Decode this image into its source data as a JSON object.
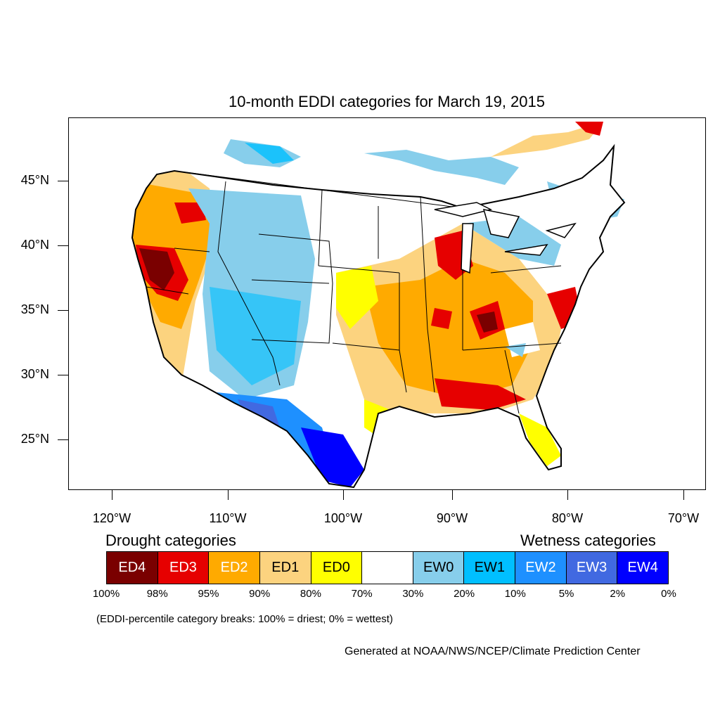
{
  "title": "10-month EDDI categories for March 19, 2015",
  "lat_labels": [
    "45°N",
    "40°N",
    "35°N",
    "30°N",
    "25°N"
  ],
  "lon_labels": [
    "120°W",
    "110°W",
    "100°W",
    "90°W",
    "80°W",
    "70°W"
  ],
  "legend": {
    "drought_heading": "Drought categories",
    "wetness_heading": "Wetness categories",
    "categories": [
      {
        "label": "ED4",
        "color": "#7a0000",
        "text_color": "#ffffff"
      },
      {
        "label": "ED3",
        "color": "#e60000",
        "text_color": "#ffffff"
      },
      {
        "label": "ED2",
        "color": "#ffaa00",
        "text_color": "#ffffff"
      },
      {
        "label": "ED1",
        "color": "#fcd37f",
        "text_color": "#000000"
      },
      {
        "label": "ED0",
        "color": "#ffff00",
        "text_color": "#000000"
      },
      {
        "label": "",
        "color": "#ffffff",
        "text_color": "#000000"
      },
      {
        "label": "EW0",
        "color": "#87ceeb",
        "text_color": "#000000"
      },
      {
        "label": "EW1",
        "color": "#00bfff",
        "text_color": "#000000"
      },
      {
        "label": "EW2",
        "color": "#1e90ff",
        "text_color": "#ffffff"
      },
      {
        "label": "EW3",
        "color": "#4169e1",
        "text_color": "#ffffff"
      },
      {
        "label": "EW4",
        "color": "#0000ff",
        "text_color": "#ffffff"
      }
    ],
    "breaks": [
      "100%",
      "98%",
      "95%",
      "90%",
      "80%",
      "70%",
      "30%",
      "20%",
      "10%",
      "5%",
      "2%",
      "0%"
    ]
  },
  "note": "(EDDI-percentile category breaks: 100% = driest; 0% = wettest)",
  "credit": "Generated at NOAA/NWS/NCEP/Climate Prediction Center"
}
